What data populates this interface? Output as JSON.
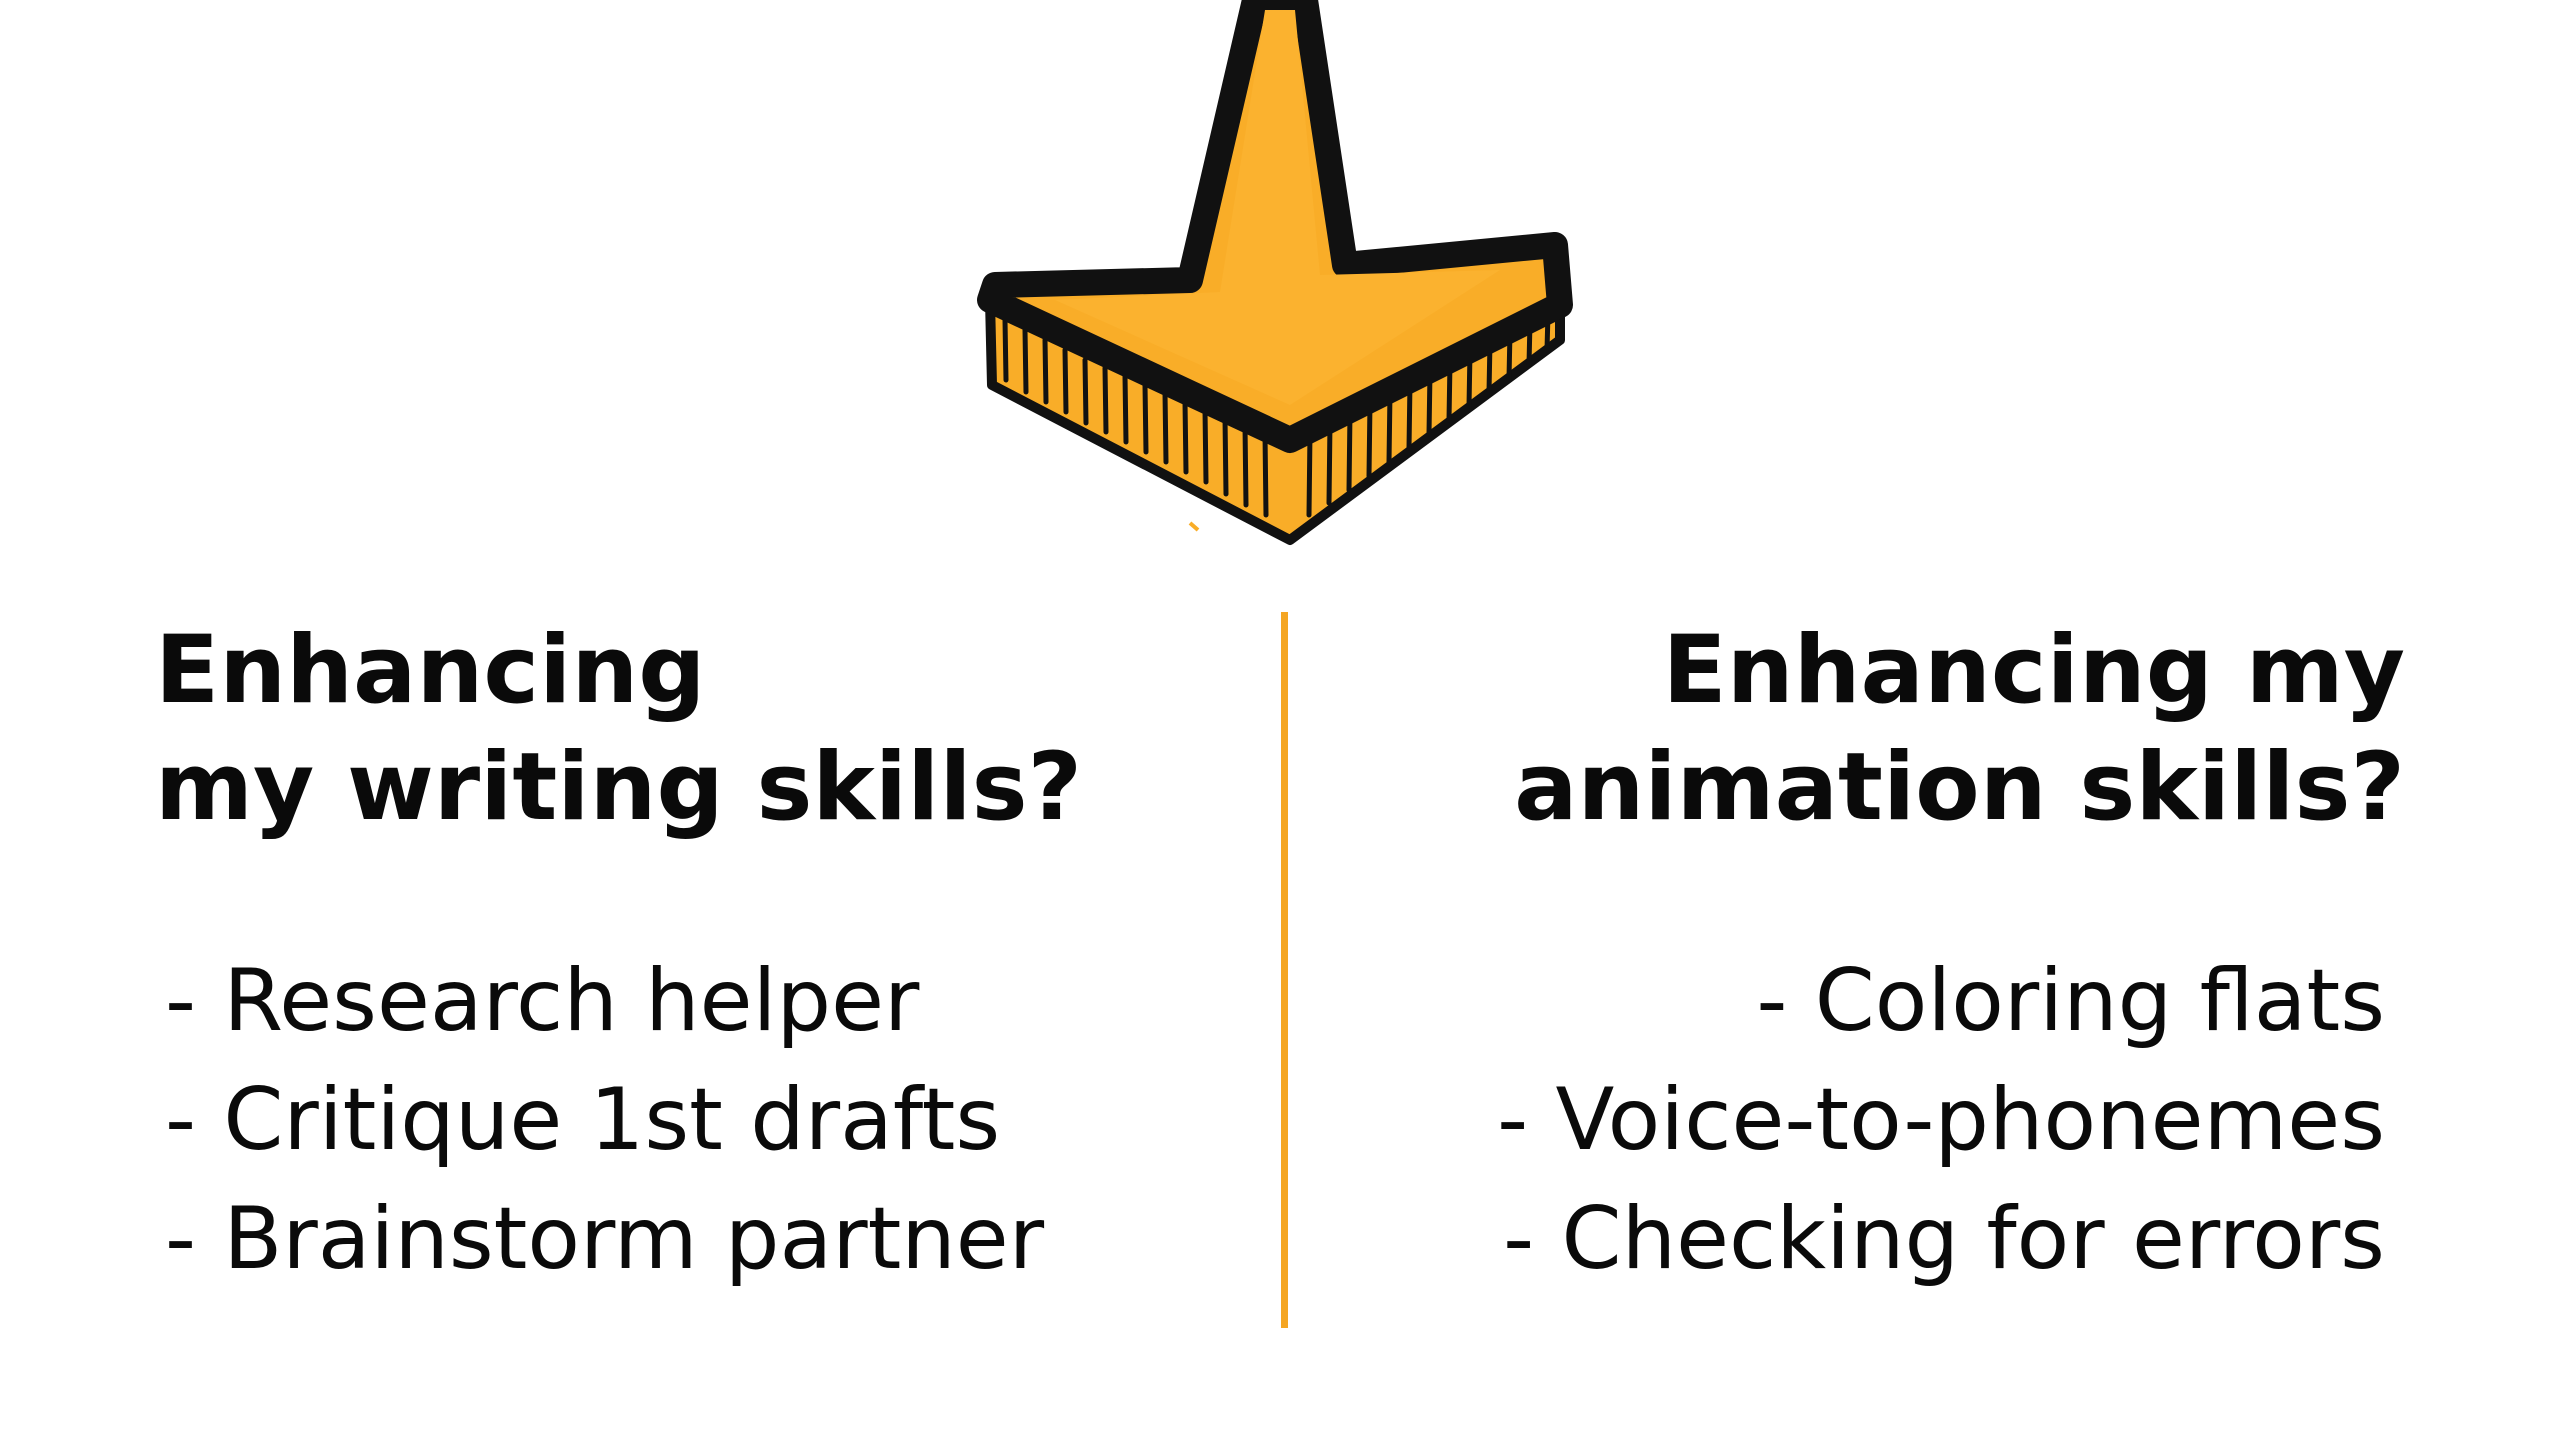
{
  "left_column": {
    "heading": "Enhancing\nmy writing skills?",
    "items": [
      "- Research helper",
      "- Critique 1st drafts",
      "- Brainstorm partner"
    ]
  },
  "right_column": {
    "heading": "Enhancing my\nanimation skills?",
    "items": [
      "- Coloring flats",
      "- Voice-to-phonemes",
      "- Checking for errors"
    ]
  },
  "illustration": {
    "icon": "down-arrow-icon",
    "fill_color": "#f9ad28",
    "outline_color": "#111111"
  },
  "colors": {
    "divider": "#f5a623",
    "text": "#0a0a0a",
    "background": "#ffffff"
  }
}
